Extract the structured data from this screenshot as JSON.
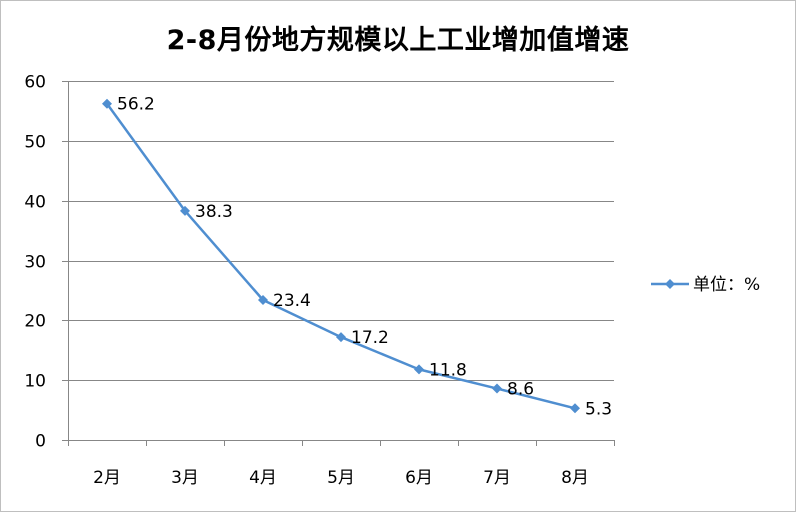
{
  "chart_data": {
    "type": "line",
    "title": "2-8月份地方规模以上工业增加值增速",
    "categories": [
      "2月",
      "3月",
      "4月",
      "5月",
      "6月",
      "7月",
      "8月"
    ],
    "series": [
      {
        "name": "单位：%",
        "values": [
          56.2,
          38.3,
          23.4,
          17.2,
          11.8,
          8.6,
          5.3
        ],
        "labels": [
          "56.2",
          "38.3",
          "23.4",
          "17.2",
          "11.8",
          "8.6",
          "5.3"
        ]
      }
    ],
    "ylim": [
      0,
      60
    ],
    "yticks": [
      0,
      10,
      20,
      30,
      40,
      50,
      60
    ],
    "grid": true,
    "legend": "right",
    "series_color": "#4F8ED0",
    "grid_color": "#878787",
    "marker": "diamond"
  }
}
